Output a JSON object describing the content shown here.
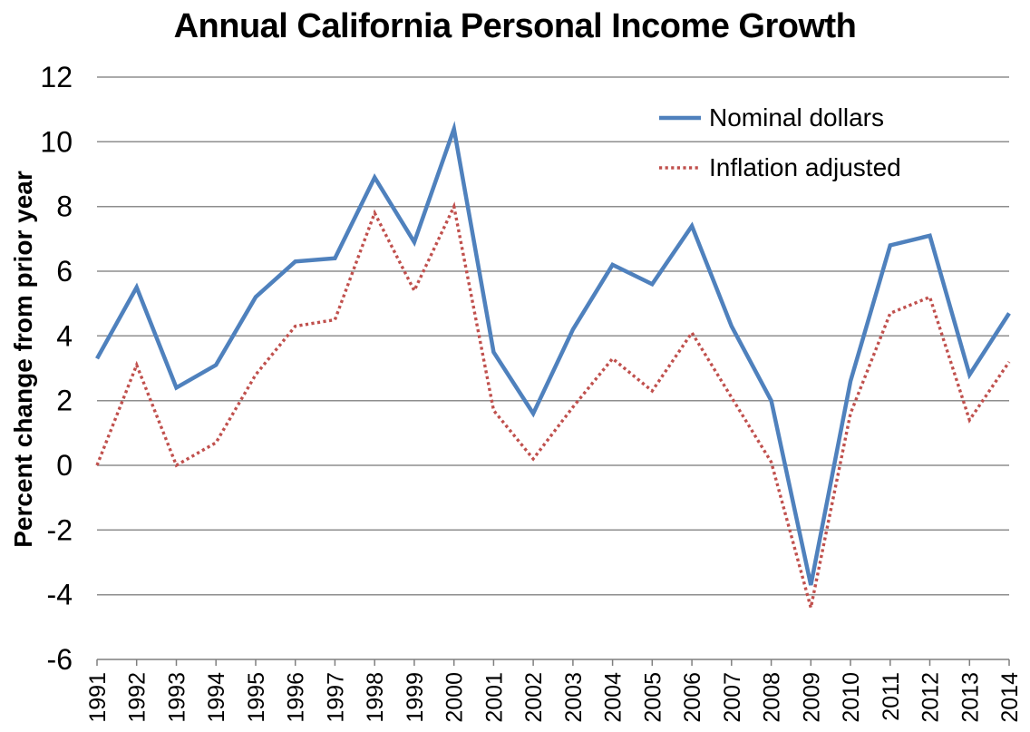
{
  "page": {
    "background": "#FFFFFF"
  },
  "chart_data": {
    "type": "line",
    "title": "Annual California Personal Income Growth",
    "ylabel": "Percent change from prior year",
    "xlabel": "",
    "x": [
      "1991",
      "1992",
      "1993",
      "1994",
      "1995",
      "1996",
      "1997",
      "1998",
      "1999",
      "2000",
      "2001",
      "2002",
      "2003",
      "2004",
      "2005",
      "2006",
      "2007",
      "2008",
      "2009",
      "2010",
      "2011",
      "2012",
      "2013",
      "2014"
    ],
    "series": [
      {
        "name": "Nominal dollars",
        "color": "#4F81BD",
        "style": "solid",
        "values": [
          3.3,
          5.5,
          2.4,
          3.1,
          5.2,
          6.3,
          6.4,
          8.9,
          6.9,
          10.4,
          3.5,
          1.6,
          4.2,
          6.2,
          5.6,
          7.4,
          4.3,
          2.0,
          -3.7,
          2.6,
          6.8,
          7.1,
          2.8,
          4.7
        ]
      },
      {
        "name": "Inflation adjusted",
        "color": "#C0504D",
        "style": "dotted",
        "values": [
          0.0,
          3.1,
          0.0,
          0.7,
          2.8,
          4.3,
          4.5,
          7.8,
          5.4,
          8.0,
          1.7,
          0.2,
          1.8,
          3.3,
          2.3,
          4.1,
          2.1,
          0.1,
          -4.4,
          1.6,
          4.7,
          5.2,
          1.4,
          3.2
        ]
      }
    ],
    "ylim": [
      -6,
      12
    ],
    "yticks": [
      12,
      10,
      8,
      6,
      4,
      2,
      0,
      -2,
      -4,
      -6
    ],
    "grid": true,
    "gridline_color": "#8E8E8E",
    "axis_color": "#7F7F7F",
    "text_color": "#000000",
    "legend_position": "inside-top-right"
  }
}
